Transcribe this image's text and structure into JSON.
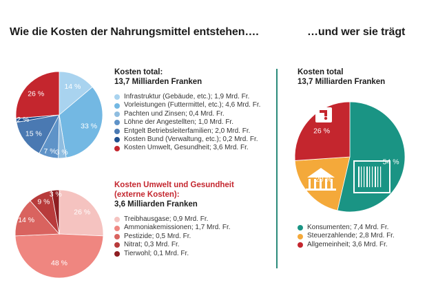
{
  "headings": {
    "left": "Wie die Kosten der Nahrungsmittel entstehen….",
    "right": "…und wer sie trägt"
  },
  "colors": {
    "divider": "#2a8a7a",
    "env_title": "#c4262e"
  },
  "chart_data": [
    {
      "type": "pie",
      "title": "Kosten total:",
      "subtitle": "13,7 Milliarden Franken",
      "slices": [
        {
          "label": "Infrastruktur (Gebäude, etc.); 1,9 Mrd. Fr.",
          "value": 1.9,
          "pct": "14 %",
          "color": "#a9d3ef"
        },
        {
          "label": "Vorleistungen (Futtermittel, etc.); 4,6 Mrd. Fr.",
          "value": 4.6,
          "pct": "33 %",
          "color": "#73b8e3"
        },
        {
          "label": "Pachten und Zinsen; 0,4 Mrd. Fr.",
          "value": 0.4,
          "pct": "3 %",
          "color": "#8fbde0"
        },
        {
          "label": "Löhne der Angestellten; 1,0 Mrd. Fr.",
          "value": 1.0,
          "pct": "7 %",
          "color": "#5f93c8"
        },
        {
          "label": "Entgelt Betriebsleiterfamilien; 2,0 Mrd. Fr.",
          "value": 2.0,
          "pct": "15 %",
          "color": "#4a79b2"
        },
        {
          "label": "Kosten Bund (Verwaltung, etc.); 0,2 Mrd. Fr.",
          "value": 0.2,
          "pct": "2 %",
          "color": "#1f4f8e"
        },
        {
          "label": "Kosten Umwelt, Gesundheit; 3,6 Mrd. Fr.",
          "value": 3.6,
          "pct": "26 %",
          "color": "#c4262e"
        }
      ]
    },
    {
      "type": "pie",
      "title": "Kosten Umwelt und Gesundheit",
      "title2": "(externe Kosten):",
      "subtitle": "3,6 Milliarden Franken",
      "slices": [
        {
          "label": "Treibhausgase; 0,9 Mrd. Fr.",
          "value": 0.9,
          "pct": "26 %",
          "color": "#f5c3c0"
        },
        {
          "label": "Ammoniakemissionen; 1,7 Mrd. Fr.",
          "value": 1.7,
          "pct": "48 %",
          "color": "#ef8680"
        },
        {
          "label": "Pestizide; 0,5 Mrd. Fr.",
          "value": 0.5,
          "pct": "14 %",
          "color": "#d9635f"
        },
        {
          "label": "Nitrat; 0,3 Mrd. Fr.",
          "value": 0.3,
          "pct": "9 %",
          "color": "#b83b3b"
        },
        {
          "label": "Tierwohl; 0,1 Mrd. Fr.",
          "value": 0.1,
          "pct": "3 %",
          "color": "#8e1e22"
        }
      ]
    },
    {
      "type": "pie",
      "title": "Kosten total",
      "subtitle": "13,7 Milliarden Franken",
      "slices": [
        {
          "label": "Konsumenten; 7,4 Mrd. Fr.",
          "value": 7.4,
          "pct": "54 %",
          "color": "#1a9484"
        },
        {
          "label": "Steuerzahlende; 2,8 Mrd. Fr.",
          "value": 2.8,
          "pct": "20 %",
          "color": "#f4a93a"
        },
        {
          "label": "Allgemeinheit; 3,6 Mrd. Fr.",
          "value": 3.6,
          "pct": "26 %",
          "color": "#c4262e"
        }
      ]
    }
  ]
}
